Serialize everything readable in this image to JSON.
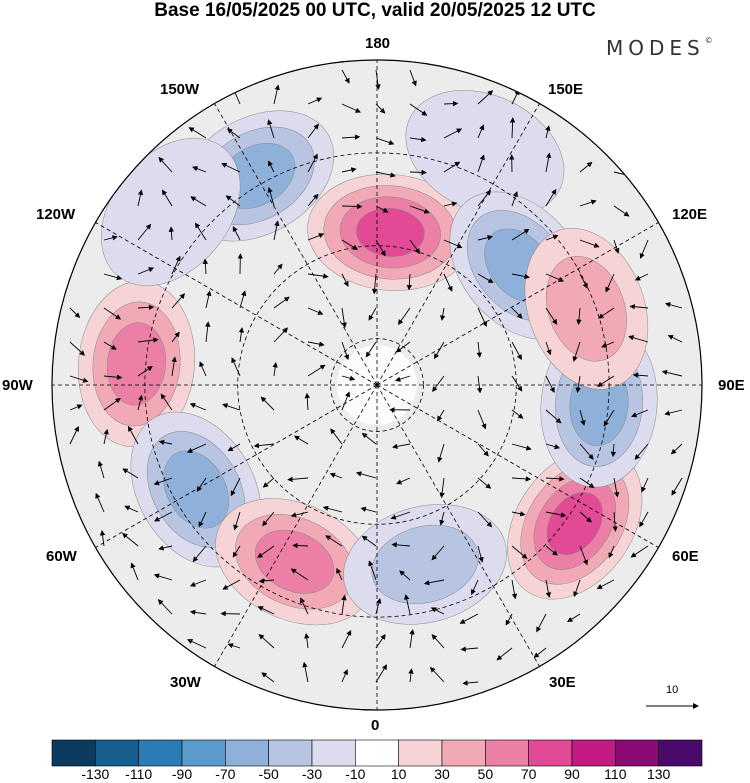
{
  "title": "Base 16/05/2025 00 UTC, valid 20/05/2025 12 UTC",
  "brand": {
    "name": "MODES",
    "mark": "©"
  },
  "longitude_labels": {
    "n180": "180",
    "w150": "150W",
    "e150": "150E",
    "w120": "120W",
    "e120": "120E",
    "w90": "90W",
    "e90": "90E",
    "w60": "60W",
    "e60": "60E",
    "w30": "30W",
    "e30": "30E",
    "s0": "0"
  },
  "vector_reference": {
    "label": "10"
  },
  "colorbar": {
    "ticks": [
      "-130",
      "-110",
      "-90",
      "-70",
      "-50",
      "-30",
      "-10",
      "10",
      "30",
      "50",
      "70",
      "90",
      "110",
      "130"
    ],
    "colors": [
      "#0b3b5e",
      "#155f8e",
      "#2a7cb5",
      "#5b9bcb",
      "#8fb0d8",
      "#b7c4e2",
      "#dcdcee",
      "#ffffff",
      "#f6d4d6",
      "#f0a9b5",
      "#ec7fa6",
      "#e24a95",
      "#c31a83",
      "#8b0a73",
      "#4a0a6b"
    ]
  },
  "anomaly_centers": [
    {
      "lon_deg": 175,
      "colat_deg": 33,
      "value": 95
    },
    {
      "lon_deg": 155,
      "colat_deg": 55,
      "value": -35
    },
    {
      "lon_deg": 130,
      "colat_deg": 40,
      "value": -70
    },
    {
      "lon_deg": -150,
      "colat_deg": 52,
      "value": -65
    },
    {
      "lon_deg": -95,
      "colat_deg": 52,
      "value": 75
    },
    {
      "lon_deg": -60,
      "colat_deg": 45,
      "value": -70
    },
    {
      "lon_deg": -25,
      "colat_deg": 42,
      "value": 70
    },
    {
      "lon_deg": 15,
      "colat_deg": 40,
      "value": -45
    },
    {
      "lon_deg": 55,
      "colat_deg": 52,
      "value": 80
    },
    {
      "lon_deg": 85,
      "colat_deg": 48,
      "value": -60
    },
    {
      "lon_deg": 110,
      "colat_deg": 48,
      "value": 40
    },
    {
      "lon_deg": -130,
      "colat_deg": 58,
      "value": -35
    }
  ]
}
